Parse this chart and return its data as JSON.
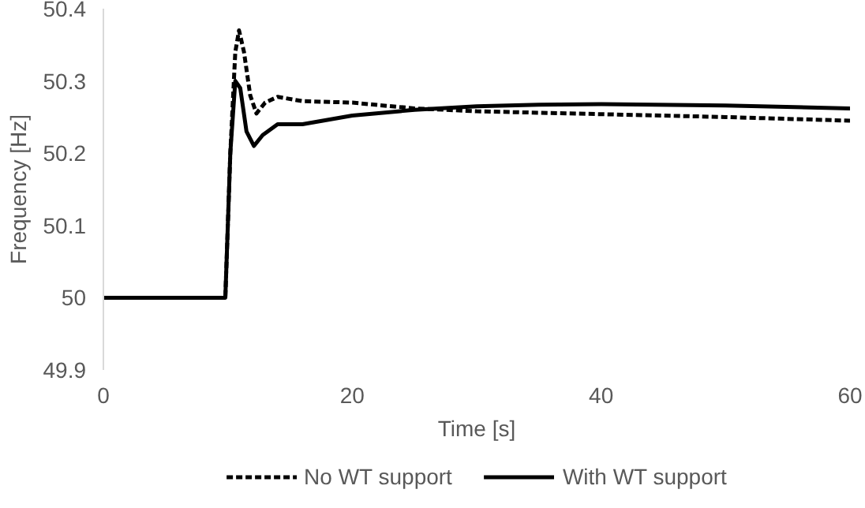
{
  "chart_data": {
    "type": "line",
    "xlabel": "Time [s]",
    "ylabel": "Frequency [Hz]",
    "xlim": [
      0,
      60
    ],
    "xticks": [
      0,
      20,
      40,
      60
    ],
    "ylim": [
      49.9,
      50.4
    ],
    "yticks": [
      {
        "value": 49.9,
        "label": "49.9"
      },
      {
        "value": 50,
        "label": "50"
      },
      {
        "value": 50.1,
        "label": "50.1"
      },
      {
        "value": 50.2,
        "label": "50.2"
      },
      {
        "value": 50.3,
        "label": "50.3"
      },
      {
        "value": 50.4,
        "label": "50.4"
      }
    ],
    "grid": false,
    "legend": "bottom",
    "marker": "none",
    "series": [
      {
        "name": "No WT support",
        "color": "#000000",
        "line_style": "dashed",
        "x": [
          0,
          9.8,
          10.2,
          10.6,
          10.9,
          11.3,
          11.8,
          12.3,
          13.0,
          14,
          16,
          20,
          25,
          30,
          40,
          50,
          60
        ],
        "values": [
          50,
          50,
          50.2,
          50.34,
          50.37,
          50.34,
          50.28,
          50.255,
          50.27,
          50.278,
          50.272,
          50.27,
          50.262,
          50.258,
          50.254,
          50.25,
          50.245
        ]
      },
      {
        "name": "With WT support",
        "color": "#000000",
        "line_style": "solid",
        "x": [
          0,
          9.8,
          10.2,
          10.6,
          11.0,
          11.5,
          12.1,
          12.8,
          14,
          16,
          20,
          25,
          30,
          35,
          40,
          50,
          60
        ],
        "values": [
          50,
          50,
          50.2,
          50.3,
          50.29,
          50.23,
          50.21,
          50.225,
          50.24,
          50.24,
          50.252,
          50.26,
          50.265,
          50.267,
          50.268,
          50.266,
          50.262
        ]
      }
    ]
  }
}
